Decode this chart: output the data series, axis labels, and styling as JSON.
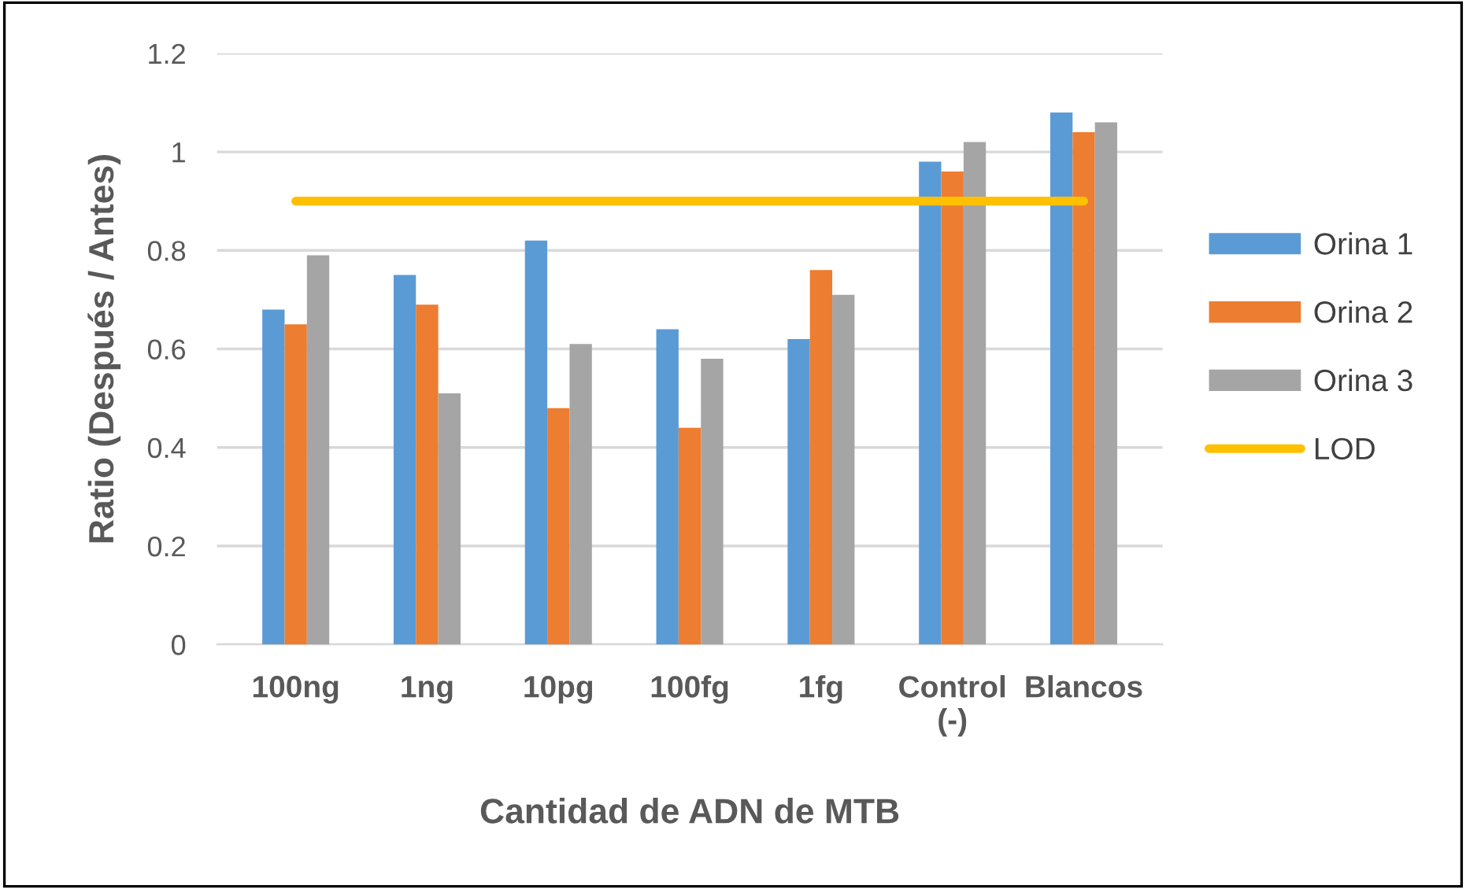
{
  "chart_data": {
    "type": "bar",
    "xlabel": "Cantidad de ADN de MTB",
    "ylabel": "Ratio (Después / Antes)",
    "categories": [
      "100ng",
      "1ng",
      "10pg",
      "100fg",
      "1fg",
      "Control\n(-)",
      "Blancos"
    ],
    "series": [
      {
        "name": "Orina 1",
        "color": "#5b9bd5",
        "values": [
          0.68,
          0.75,
          0.82,
          0.64,
          0.62,
          0.98,
          1.08
        ]
      },
      {
        "name": "Orina 2",
        "color": "#ed7d31",
        "values": [
          0.65,
          0.69,
          0.48,
          0.44,
          0.76,
          0.96,
          1.04
        ]
      },
      {
        "name": "Orina 3",
        "color": "#a5a5a5",
        "values": [
          0.79,
          0.51,
          0.61,
          0.58,
          0.71,
          1.02,
          1.06
        ]
      },
      {
        "name": "LOD",
        "type": "line",
        "color": "#ffc000",
        "values": [
          0.9,
          0.9,
          0.9,
          0.9,
          0.9,
          0.9,
          0.9
        ]
      }
    ],
    "ylim": [
      0,
      1.2
    ],
    "yticks": [
      0,
      0.2,
      0.4,
      0.6,
      0.8,
      1,
      1.2
    ],
    "grid": "y",
    "legend": "right"
  }
}
